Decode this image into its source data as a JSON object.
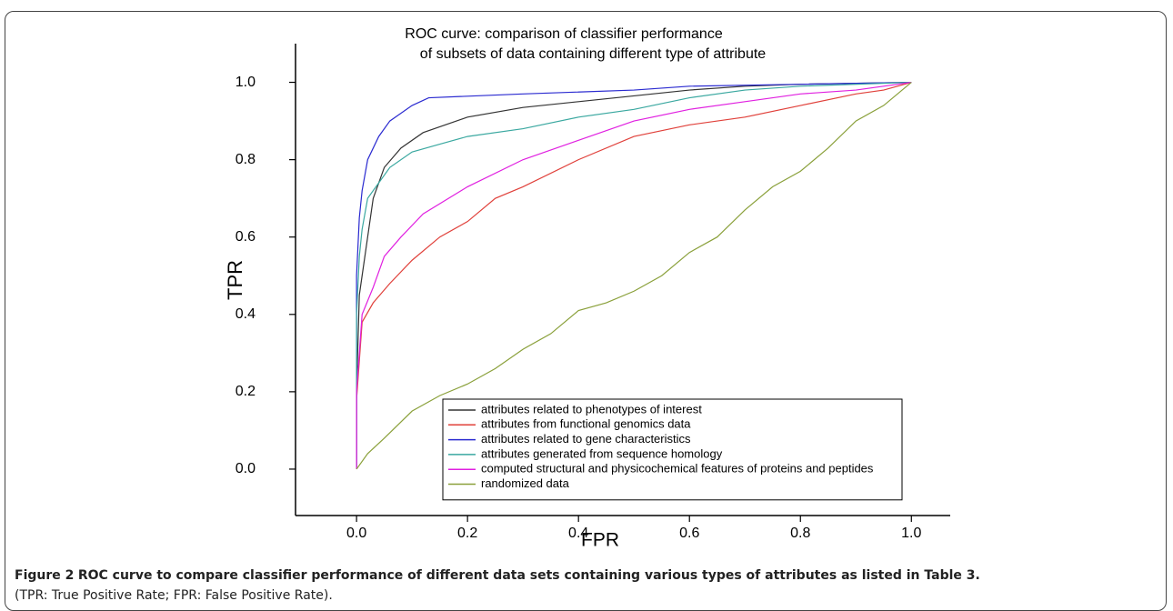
{
  "chart_data": {
    "type": "line",
    "title": [
      "ROC curve: comparison of classifier performance",
      "of subsets of data containing different type of attribute"
    ],
    "xlabel": "FPR",
    "ylabel": "TPR",
    "xlim": [
      -0.11,
      1.07
    ],
    "ylim": [
      -0.12,
      1.1
    ],
    "xticks": [
      {
        "value": 0,
        "label": "0.0"
      },
      0.2,
      0.4,
      0.6,
      0.8,
      {
        "value": 1,
        "label": "1.0"
      }
    ],
    "yticks": [
      {
        "value": 0,
        "label": "0.0"
      },
      0.2,
      0.4,
      0.6,
      0.8,
      {
        "value": 1,
        "label": "1.0"
      }
    ],
    "legend": "lower right",
    "series": [
      {
        "name": "attributes related to phenotypes of interest",
        "color": "#333333",
        "x": [
          0,
          0,
          0.005,
          0.01,
          0.02,
          0.03,
          0.05,
          0.08,
          0.12,
          0.2,
          0.3,
          0.4,
          0.5,
          0.6,
          0.7,
          0.8,
          1
        ],
        "values": [
          0,
          0.2,
          0.45,
          0.5,
          0.6,
          0.7,
          0.78,
          0.83,
          0.87,
          0.91,
          0.935,
          0.95,
          0.965,
          0.98,
          0.99,
          0.995,
          1
        ]
      },
      {
        "name": "attributes from functional genomics data",
        "color": "#e0403a",
        "x": [
          0,
          0,
          0.01,
          0.03,
          0.06,
          0.1,
          0.15,
          0.2,
          0.25,
          0.3,
          0.4,
          0.5,
          0.6,
          0.7,
          0.8,
          0.9,
          0.95,
          1
        ],
        "values": [
          0,
          0.18,
          0.38,
          0.43,
          0.48,
          0.54,
          0.6,
          0.64,
          0.7,
          0.73,
          0.8,
          0.86,
          0.89,
          0.91,
          0.94,
          0.97,
          0.98,
          1
        ]
      },
      {
        "name": "attributes related to gene characteristics",
        "color": "#2a2ad0",
        "x": [
          0,
          0,
          0.005,
          0.01,
          0.02,
          0.04,
          0.06,
          0.1,
          0.13,
          0.3,
          0.5,
          0.6,
          0.8,
          1
        ],
        "values": [
          0,
          0.5,
          0.65,
          0.72,
          0.8,
          0.86,
          0.9,
          0.94,
          0.96,
          0.97,
          0.98,
          0.99,
          0.995,
          1
        ]
      },
      {
        "name": "attributes generated from sequence homology",
        "color": "#3aa8a0",
        "x": [
          0,
          0,
          0.005,
          0.01,
          0.02,
          0.04,
          0.06,
          0.1,
          0.15,
          0.2,
          0.3,
          0.4,
          0.5,
          0.6,
          0.7,
          0.8,
          1
        ],
        "values": [
          0,
          0.4,
          0.55,
          0.62,
          0.7,
          0.74,
          0.78,
          0.82,
          0.84,
          0.86,
          0.88,
          0.91,
          0.93,
          0.96,
          0.98,
          0.99,
          1
        ]
      },
      {
        "name": "computed structural and physicochemical features of proteins and peptides",
        "color": "#e020e0",
        "x": [
          0,
          0,
          0.01,
          0.03,
          0.05,
          0.08,
          0.12,
          0.2,
          0.3,
          0.4,
          0.5,
          0.6,
          0.7,
          0.8,
          0.9,
          1
        ],
        "values": [
          0,
          0.2,
          0.4,
          0.47,
          0.55,
          0.6,
          0.66,
          0.73,
          0.8,
          0.85,
          0.9,
          0.93,
          0.95,
          0.97,
          0.98,
          1
        ]
      },
      {
        "name": "randomized data",
        "color": "#8aa03a",
        "x": [
          0,
          0.02,
          0.05,
          0.1,
          0.15,
          0.2,
          0.25,
          0.3,
          0.35,
          0.4,
          0.45,
          0.5,
          0.55,
          0.6,
          0.65,
          0.7,
          0.75,
          0.8,
          0.85,
          0.9,
          0.95,
          1
        ],
        "values": [
          0,
          0.04,
          0.08,
          0.15,
          0.19,
          0.22,
          0.26,
          0.31,
          0.35,
          0.41,
          0.43,
          0.46,
          0.5,
          0.56,
          0.6,
          0.67,
          0.73,
          0.77,
          0.83,
          0.9,
          0.94,
          1
        ]
      }
    ]
  },
  "caption": {
    "label": "Figure 2",
    "title": "ROC curve to compare classifier performance of different data sets containing various types of attributes as listed in Table 3.",
    "note": "(TPR: True Positive Rate; FPR: False Positive Rate)."
  }
}
